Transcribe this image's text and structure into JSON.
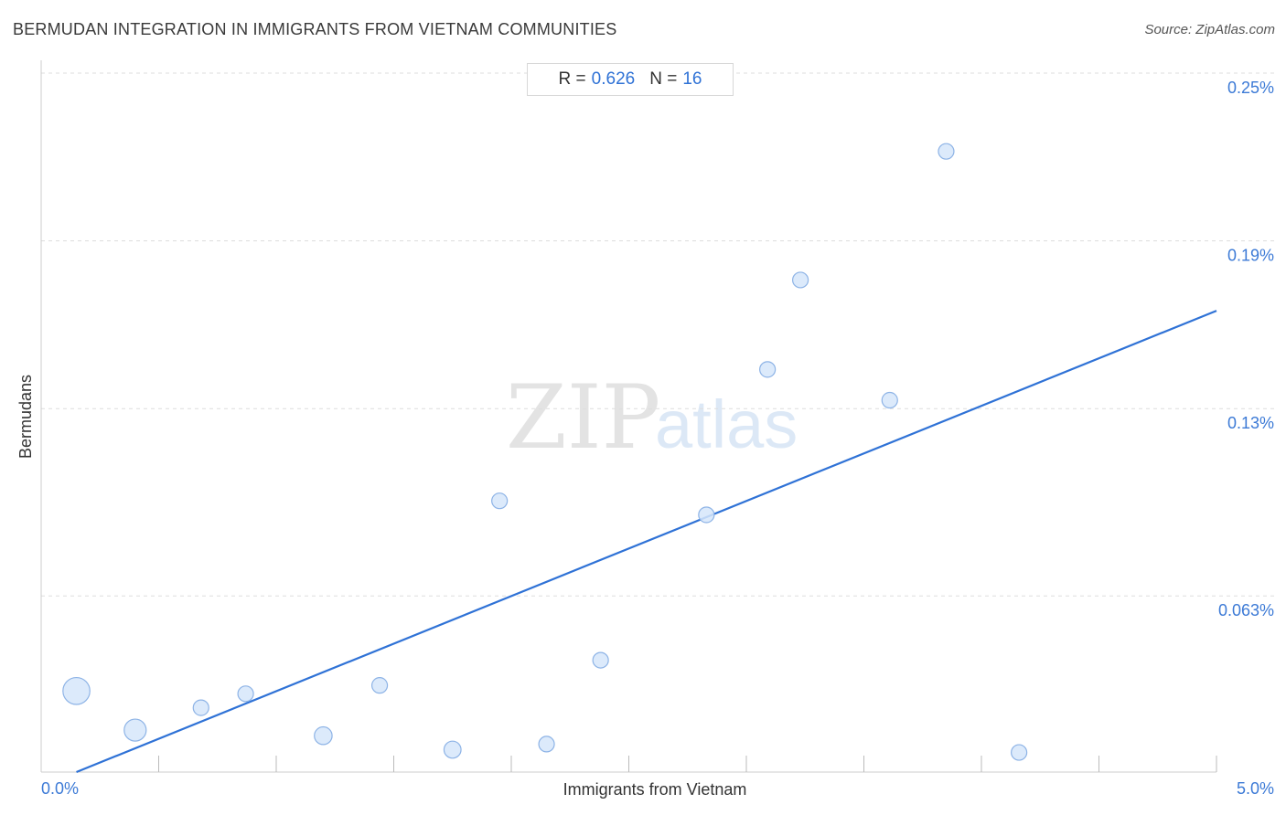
{
  "title": "BERMUDAN INTEGRATION IN IMMIGRANTS FROM VIETNAM COMMUNITIES",
  "source": "Source: ZipAtlas.com",
  "stats": {
    "r_label": "R =",
    "r_value": "0.626",
    "n_label": "N =",
    "n_value": "16"
  },
  "watermark": {
    "zip": "ZIP",
    "atlas": "atlas"
  },
  "colors": {
    "point_fill": "#d6e6fa",
    "point_stroke": "#8db3e6",
    "line": "#2f72d6",
    "grid": "#dddddd",
    "tick_text": "#3c7ad6"
  },
  "chart_data": {
    "type": "scatter",
    "title": "BERMUDAN INTEGRATION IN IMMIGRANTS FROM VIETNAM COMMUNITIES",
    "xlabel": "Immigrants from Vietnam",
    "ylabel": "Bermudans",
    "xlim": [
      0.0,
      5.0
    ],
    "ylim": [
      0.0,
      0.25
    ],
    "x_tick_labels": [
      "0.0%",
      "5.0%"
    ],
    "y_ticks": [
      0.063,
      0.13,
      0.19,
      0.25
    ],
    "y_tick_labels": [
      "0.063%",
      "0.13%",
      "0.19%",
      "0.25%"
    ],
    "grid": true,
    "points": [
      {
        "x": 0.15,
        "y": 0.029,
        "size": 3
      },
      {
        "x": 0.4,
        "y": 0.015,
        "size": 2
      },
      {
        "x": 0.68,
        "y": 0.023,
        "size": 1
      },
      {
        "x": 0.87,
        "y": 0.028,
        "size": 1
      },
      {
        "x": 1.2,
        "y": 0.013,
        "size": 1.3
      },
      {
        "x": 1.44,
        "y": 0.031,
        "size": 1
      },
      {
        "x": 1.75,
        "y": 0.008,
        "size": 1.2
      },
      {
        "x": 1.95,
        "y": 0.097,
        "size": 1
      },
      {
        "x": 2.15,
        "y": 0.01,
        "size": 1
      },
      {
        "x": 2.38,
        "y": 0.04,
        "size": 1
      },
      {
        "x": 2.83,
        "y": 0.092,
        "size": 1
      },
      {
        "x": 3.09,
        "y": 0.144,
        "size": 1
      },
      {
        "x": 3.23,
        "y": 0.176,
        "size": 1
      },
      {
        "x": 3.61,
        "y": 0.133,
        "size": 1
      },
      {
        "x": 3.85,
        "y": 0.222,
        "size": 1
      },
      {
        "x": 4.16,
        "y": 0.007,
        "size": 1
      }
    ],
    "trendline": {
      "x": [
        0.15,
        5.0
      ],
      "y": [
        0.0,
        0.165
      ]
    }
  }
}
